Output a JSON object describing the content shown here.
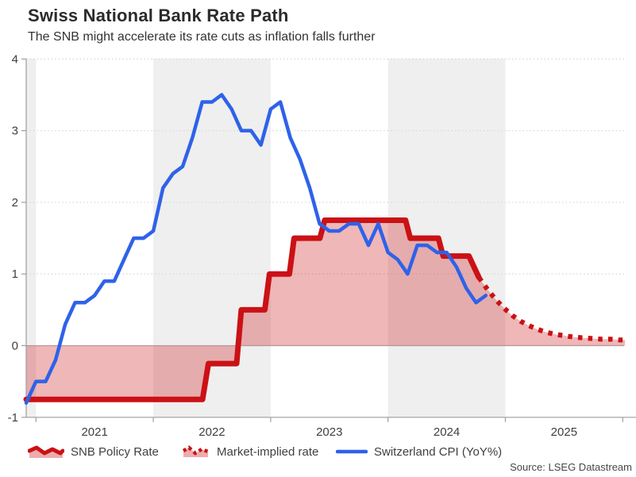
{
  "header": {
    "title": "Swiss National Bank Rate Path",
    "subtitle": "The SNB might accelerate its rate cuts as inflation falls further"
  },
  "source": "Source: LSEG Datastream",
  "legend": {
    "snb_label": "SNB Policy Rate",
    "market_label": "Market-implied rate",
    "cpi_label": "Switzerland CPI (YoY%)"
  },
  "colors": {
    "red": "#cb1115",
    "red_fill": "rgba(203,17,21,0.30)",
    "blue": "#2e62e9",
    "band": "#efefef",
    "grid": "#d9d9d9",
    "zero_line": "#b0b0b0",
    "axis": "#9e9e9e",
    "text": "#3f3f3f"
  },
  "chart_data": {
    "type": "line",
    "title": "Swiss National Bank Rate Path",
    "subtitle": "The SNB might accelerate its rate cuts as inflation falls further",
    "legend_position": "bottom",
    "grid": "dotted horizontal at integers",
    "x_axis": {
      "range": [
        2020.917,
        2026.03
      ],
      "ticks": [
        2021,
        2022,
        2023,
        2024,
        2025,
        2026
      ],
      "labels": [
        "2021",
        "2022",
        "2023",
        "2024",
        "2025"
      ],
      "shaded_year_bands": [
        [
          2020.917,
          2021
        ],
        [
          2022,
          2023
        ],
        [
          2024,
          2025
        ]
      ]
    },
    "y_axis": {
      "range": [
        -1,
        4
      ],
      "ticks": [
        -1,
        0,
        1,
        2,
        3,
        4
      ],
      "labels": [
        "-1",
        "0",
        "1",
        "2",
        "3",
        "4"
      ]
    },
    "series": [
      {
        "name": "SNB Policy Rate",
        "style": "solid-step-area",
        "points": [
          [
            2020.917,
            -0.75
          ],
          [
            2022.42,
            -0.75
          ],
          [
            2022.47,
            -0.25
          ],
          [
            2022.71,
            -0.25
          ],
          [
            2022.75,
            0.5
          ],
          [
            2022.95,
            0.5
          ],
          [
            2022.99,
            1.0
          ],
          [
            2023.16,
            1.0
          ],
          [
            2023.2,
            1.5
          ],
          [
            2023.42,
            1.5
          ],
          [
            2023.46,
            1.75
          ],
          [
            2024.15,
            1.75
          ],
          [
            2024.19,
            1.5
          ],
          [
            2024.43,
            1.5
          ],
          [
            2024.47,
            1.25
          ],
          [
            2024.69,
            1.25
          ],
          [
            2024.775,
            0.95
          ]
        ]
      },
      {
        "name": "Market-implied rate",
        "style": "dotted-area",
        "points": [
          [
            2024.775,
            0.95
          ],
          [
            2024.85,
            0.78
          ],
          [
            2024.92,
            0.64
          ],
          [
            2024.99,
            0.52
          ],
          [
            2025.06,
            0.42
          ],
          [
            2025.13,
            0.34
          ],
          [
            2025.2,
            0.28
          ],
          [
            2025.27,
            0.23
          ],
          [
            2025.34,
            0.19
          ],
          [
            2025.42,
            0.16
          ],
          [
            2025.5,
            0.14
          ],
          [
            2025.58,
            0.12
          ],
          [
            2025.66,
            0.11
          ],
          [
            2025.74,
            0.1
          ],
          [
            2025.82,
            0.09
          ],
          [
            2025.9,
            0.09
          ],
          [
            2025.97,
            0.08
          ],
          [
            2026.02,
            0.08
          ]
        ]
      },
      {
        "name": "Switzerland CPI (YoY%)",
        "style": "line",
        "points": [
          [
            2020.917,
            -0.8
          ],
          [
            2021.0,
            -0.5
          ],
          [
            2021.083,
            -0.5
          ],
          [
            2021.167,
            -0.2
          ],
          [
            2021.25,
            0.3
          ],
          [
            2021.333,
            0.6
          ],
          [
            2021.417,
            0.6
          ],
          [
            2021.5,
            0.7
          ],
          [
            2021.583,
            0.9
          ],
          [
            2021.667,
            0.9
          ],
          [
            2021.75,
            1.2
          ],
          [
            2021.833,
            1.5
          ],
          [
            2021.917,
            1.5
          ],
          [
            2022.0,
            1.6
          ],
          [
            2022.083,
            2.2
          ],
          [
            2022.167,
            2.4
          ],
          [
            2022.25,
            2.5
          ],
          [
            2022.333,
            2.9
          ],
          [
            2022.417,
            3.4
          ],
          [
            2022.5,
            3.4
          ],
          [
            2022.583,
            3.5
          ],
          [
            2022.667,
            3.3
          ],
          [
            2022.75,
            3.0
          ],
          [
            2022.833,
            3.0
          ],
          [
            2022.917,
            2.8
          ],
          [
            2023.0,
            3.3
          ],
          [
            2023.083,
            3.4
          ],
          [
            2023.167,
            2.9
          ],
          [
            2023.25,
            2.6
          ],
          [
            2023.333,
            2.2
          ],
          [
            2023.417,
            1.7
          ],
          [
            2023.5,
            1.6
          ],
          [
            2023.583,
            1.6
          ],
          [
            2023.667,
            1.7
          ],
          [
            2023.75,
            1.7
          ],
          [
            2023.833,
            1.4
          ],
          [
            2023.917,
            1.7
          ],
          [
            2024.0,
            1.3
          ],
          [
            2024.083,
            1.2
          ],
          [
            2024.167,
            1.0
          ],
          [
            2024.25,
            1.4
          ],
          [
            2024.333,
            1.4
          ],
          [
            2024.417,
            1.3
          ],
          [
            2024.5,
            1.3
          ],
          [
            2024.583,
            1.1
          ],
          [
            2024.667,
            0.8
          ],
          [
            2024.75,
            0.6
          ],
          [
            2024.833,
            0.7
          ]
        ]
      }
    ]
  }
}
